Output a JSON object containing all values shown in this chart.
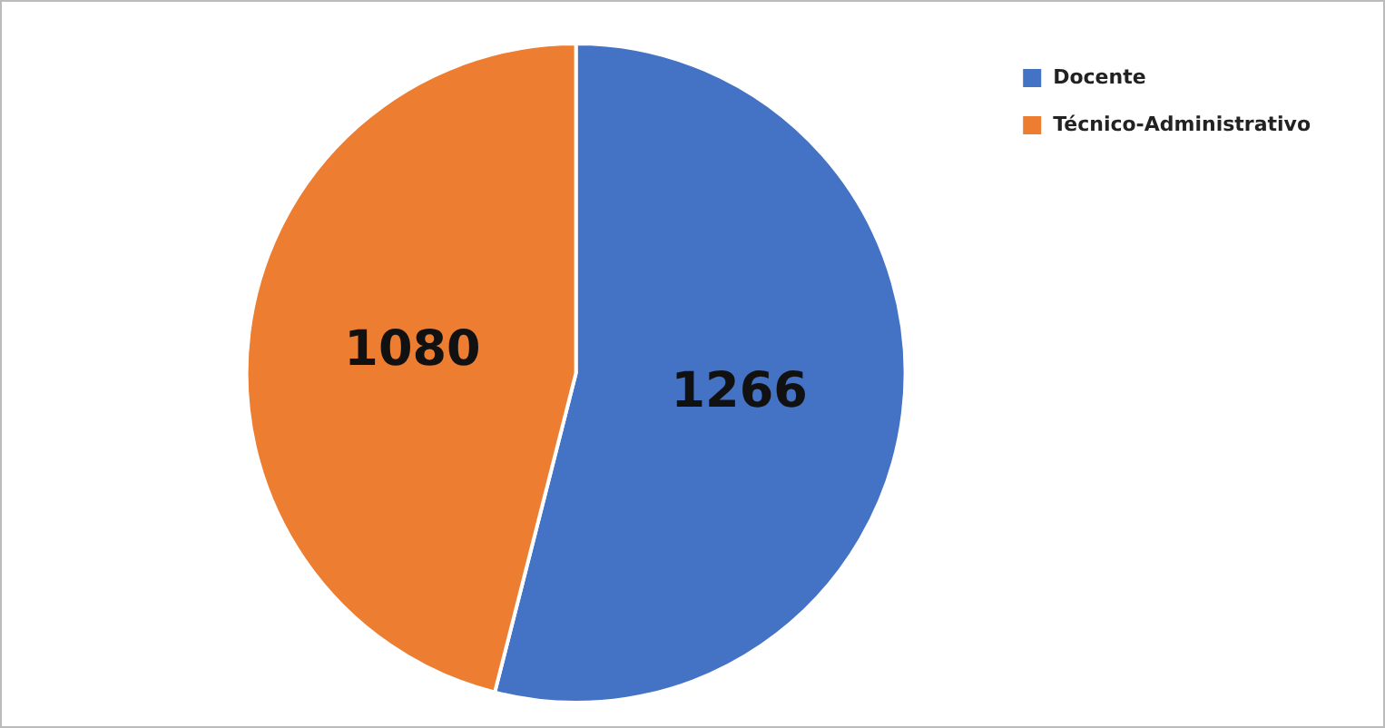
{
  "chart_data": {
    "type": "pie",
    "categories": [
      "Docente",
      "Técnico-Administrativo"
    ],
    "values": [
      1266,
      1080
    ],
    "colors": [
      "#4472c4",
      "#ed7d31"
    ],
    "data_labels": true,
    "legend": "top right"
  }
}
